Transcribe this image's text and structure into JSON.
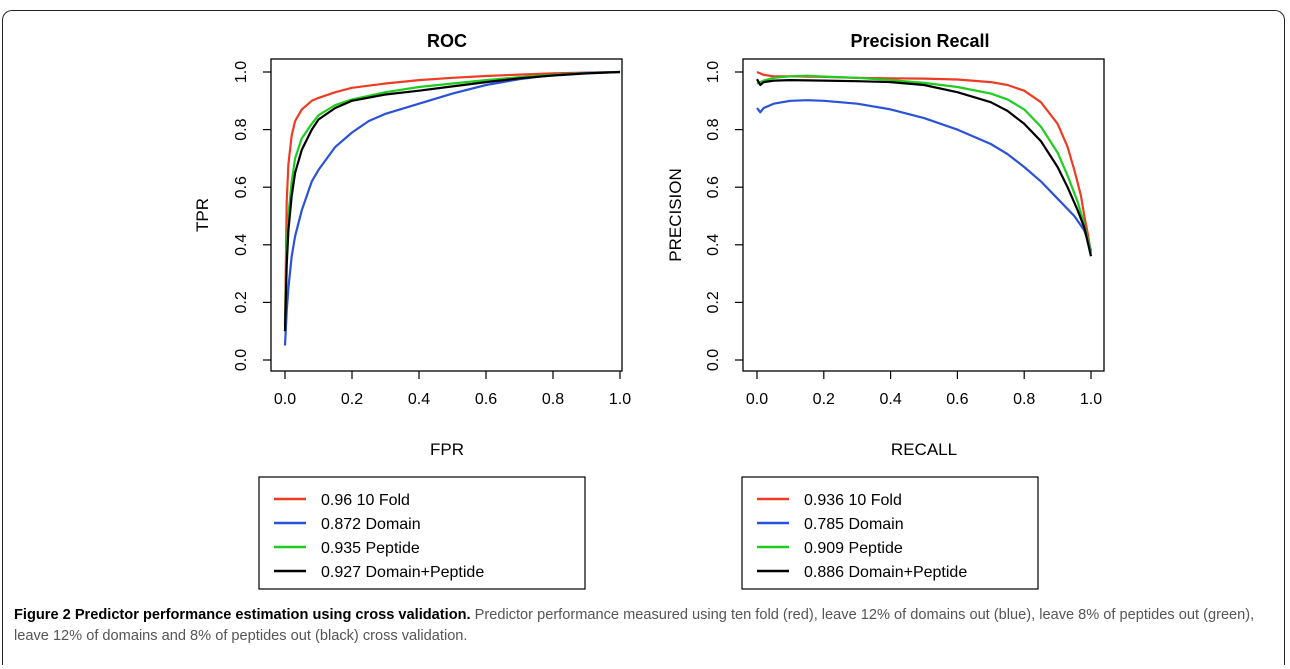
{
  "colors": {
    "10fold": "#ee3b24",
    "domain": "#2a52d8",
    "peptide": "#1fcc1f",
    "domain_peptide": "#000000"
  },
  "chart_data": [
    {
      "type": "line",
      "title": "ROC",
      "xlabel": "FPR",
      "ylabel": "TPR",
      "xlim": [
        0,
        1
      ],
      "ylim": [
        0,
        1
      ],
      "xticks": [
        "0.0",
        "0.2",
        "0.4",
        "0.6",
        "0.8",
        "1.0"
      ],
      "yticks": [
        "0.0",
        "0.2",
        "0.4",
        "0.6",
        "0.8",
        "1.0"
      ],
      "grid": false,
      "legend_position": "below",
      "series": [
        {
          "name": "0.96 10 Fold",
          "color_key": "10fold",
          "x": [
            0,
            0.005,
            0.01,
            0.02,
            0.03,
            0.05,
            0.08,
            0.1,
            0.15,
            0.2,
            0.3,
            0.4,
            0.5,
            0.6,
            0.7,
            0.8,
            0.9,
            1.0
          ],
          "y": [
            0.12,
            0.55,
            0.68,
            0.78,
            0.83,
            0.87,
            0.9,
            0.91,
            0.93,
            0.945,
            0.96,
            0.972,
            0.98,
            0.986,
            0.991,
            0.995,
            0.998,
            1.0
          ]
        },
        {
          "name": "0.872 Domain",
          "color_key": "domain",
          "x": [
            0,
            0.005,
            0.01,
            0.02,
            0.03,
            0.05,
            0.08,
            0.1,
            0.15,
            0.2,
            0.25,
            0.3,
            0.4,
            0.5,
            0.6,
            0.7,
            0.8,
            0.9,
            1.0
          ],
          "y": [
            0.05,
            0.17,
            0.25,
            0.36,
            0.43,
            0.52,
            0.62,
            0.66,
            0.74,
            0.79,
            0.83,
            0.855,
            0.89,
            0.925,
            0.955,
            0.975,
            0.99,
            0.997,
            1.0
          ]
        },
        {
          "name": "0.935 Peptide",
          "color_key": "peptide",
          "x": [
            0,
            0.005,
            0.01,
            0.02,
            0.03,
            0.05,
            0.08,
            0.1,
            0.15,
            0.2,
            0.3,
            0.4,
            0.5,
            0.6,
            0.7,
            0.8,
            0.9,
            1.0
          ],
          "y": [
            0.12,
            0.38,
            0.5,
            0.62,
            0.7,
            0.77,
            0.82,
            0.85,
            0.885,
            0.905,
            0.93,
            0.948,
            0.96,
            0.972,
            0.982,
            0.99,
            0.996,
            1.0
          ]
        },
        {
          "name": "0.927 Domain+Peptide",
          "color_key": "domain_peptide",
          "x": [
            0,
            0.005,
            0.01,
            0.02,
            0.03,
            0.05,
            0.08,
            0.1,
            0.15,
            0.2,
            0.3,
            0.4,
            0.5,
            0.6,
            0.7,
            0.8,
            0.9,
            1.0
          ],
          "y": [
            0.1,
            0.33,
            0.45,
            0.57,
            0.65,
            0.73,
            0.8,
            0.835,
            0.875,
            0.9,
            0.922,
            0.935,
            0.95,
            0.965,
            0.978,
            0.988,
            0.995,
            1.0
          ]
        }
      ]
    },
    {
      "type": "line",
      "title": "Precision Recall",
      "xlabel": "RECALL",
      "ylabel": "PRECISION",
      "xlim": [
        0,
        1
      ],
      "ylim": [
        0,
        1
      ],
      "xticks": [
        "0.0",
        "0.2",
        "0.4",
        "0.6",
        "0.8",
        "1.0"
      ],
      "yticks": [
        "0.0",
        "0.2",
        "0.4",
        "0.6",
        "0.8",
        "1.0"
      ],
      "grid": false,
      "legend_position": "below",
      "series": [
        {
          "name": "0.936 10 Fold",
          "color_key": "10fold",
          "x": [
            0,
            0.02,
            0.05,
            0.1,
            0.2,
            0.3,
            0.4,
            0.5,
            0.6,
            0.7,
            0.75,
            0.8,
            0.85,
            0.9,
            0.93,
            0.95,
            0.97,
            0.98,
            0.99,
            1.0
          ],
          "y": [
            1.0,
            0.99,
            0.985,
            0.985,
            0.983,
            0.98,
            0.978,
            0.977,
            0.974,
            0.965,
            0.955,
            0.935,
            0.895,
            0.82,
            0.74,
            0.66,
            0.57,
            0.5,
            0.44,
            0.37
          ]
        },
        {
          "name": "0.785 Domain",
          "color_key": "domain",
          "x": [
            0,
            0.01,
            0.02,
            0.05,
            0.1,
            0.15,
            0.2,
            0.3,
            0.4,
            0.5,
            0.6,
            0.7,
            0.75,
            0.8,
            0.85,
            0.9,
            0.95,
            0.98,
            1.0
          ],
          "y": [
            0.875,
            0.86,
            0.875,
            0.89,
            0.9,
            0.902,
            0.9,
            0.89,
            0.87,
            0.84,
            0.8,
            0.75,
            0.715,
            0.67,
            0.62,
            0.56,
            0.5,
            0.45,
            0.38
          ]
        },
        {
          "name": "0.909 Peptide",
          "color_key": "peptide",
          "x": [
            0,
            0.02,
            0.05,
            0.1,
            0.15,
            0.2,
            0.3,
            0.4,
            0.5,
            0.6,
            0.7,
            0.75,
            0.8,
            0.85,
            0.9,
            0.93,
            0.96,
            0.98,
            1.0
          ],
          "y": [
            0.96,
            0.97,
            0.98,
            0.985,
            0.987,
            0.984,
            0.98,
            0.972,
            0.962,
            0.948,
            0.925,
            0.905,
            0.87,
            0.81,
            0.72,
            0.64,
            0.55,
            0.47,
            0.37
          ]
        },
        {
          "name": "0.886 Domain+Peptide",
          "color_key": "domain_peptide",
          "x": [
            0,
            0.01,
            0.02,
            0.05,
            0.1,
            0.2,
            0.3,
            0.4,
            0.5,
            0.6,
            0.7,
            0.75,
            0.8,
            0.85,
            0.9,
            0.93,
            0.96,
            0.98,
            1.0
          ],
          "y": [
            0.975,
            0.955,
            0.965,
            0.97,
            0.972,
            0.97,
            0.968,
            0.965,
            0.955,
            0.93,
            0.895,
            0.865,
            0.82,
            0.76,
            0.67,
            0.6,
            0.52,
            0.46,
            0.36
          ]
        }
      ]
    }
  ],
  "caption": {
    "title": "Figure 2 Predictor performance estimation using cross validation.",
    "text": " Predictor performance measured using ten fold (red), leave 12% of domains out (blue), leave 8% of peptides out (green), leave 12% of domains and 8% of peptides out (black) cross validation."
  }
}
